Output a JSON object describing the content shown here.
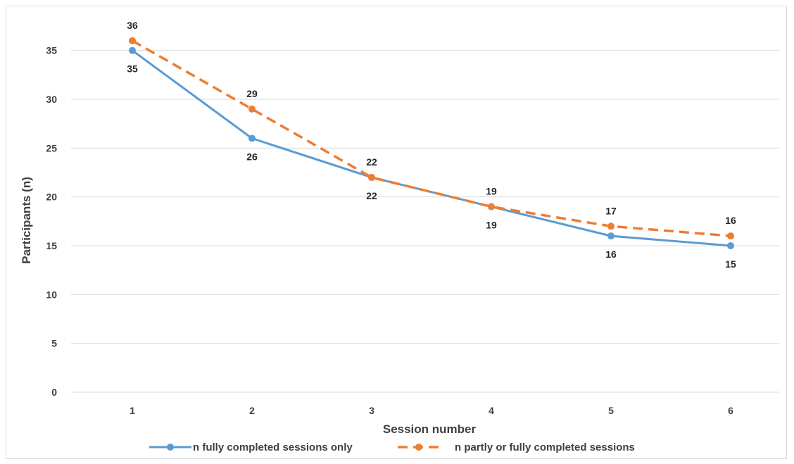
{
  "chart_data": {
    "type": "line",
    "title": "",
    "xlabel": "Session number",
    "ylabel": "Participants (n)",
    "categories": [
      "1",
      "2",
      "3",
      "4",
      "5",
      "6"
    ],
    "ylim": [
      0,
      35
    ],
    "yticks": [
      0,
      5,
      10,
      15,
      20,
      25,
      30,
      35
    ],
    "grid": true,
    "legend_position": "bottom",
    "series": [
      {
        "name": "n fully completed sessions only",
        "values": [
          35,
          26,
          22,
          19,
          16,
          15
        ],
        "color": "#5b9bd5",
        "line_style": "solid",
        "label_position": "below"
      },
      {
        "name": "n partly or fully completed sessions",
        "values": [
          36,
          29,
          22,
          19,
          17,
          16
        ],
        "color": "#ed7d31",
        "line_style": "dashed",
        "label_position": "above"
      }
    ]
  }
}
